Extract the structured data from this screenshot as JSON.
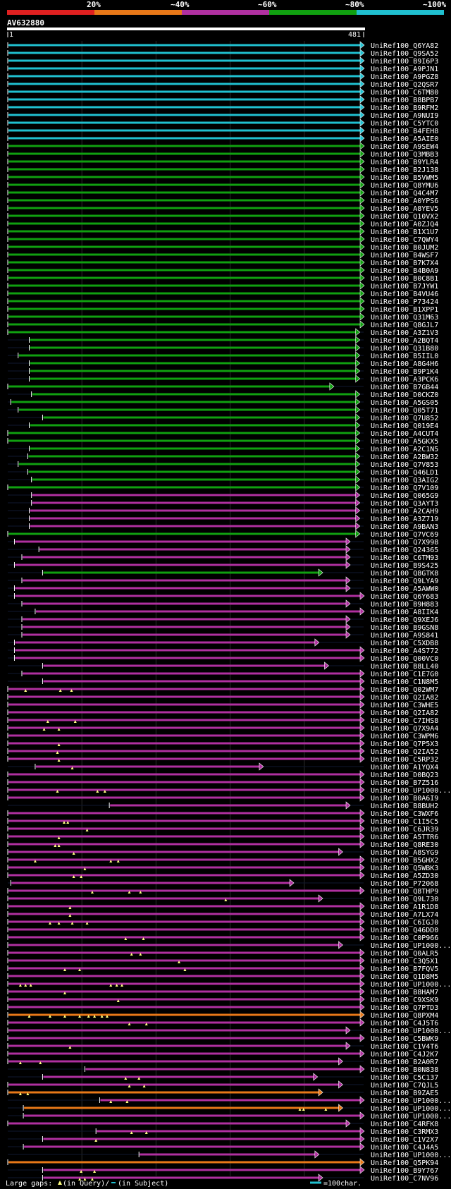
{
  "header": {
    "legend_labels": [
      "20%",
      "~40%",
      "~60%",
      "~80%",
      "~100%"
    ],
    "legend_colors": [
      "#e02020",
      "#e87818",
      "#b030a0",
      "#10a010",
      "#20c0d0"
    ],
    "query_name": "AV632880",
    "start_label": "1",
    "end_label": "481"
  },
  "colors": {
    "cyan": "#20c0d0",
    "green": "#10a010",
    "magenta": "#b030a0",
    "orange": "#e87818",
    "gap_marker": "#ffff80"
  },
  "footer": {
    "text_prefix": "Large gaps:",
    "text_query": "(in Query)/",
    "text_subject": "(in Subject)",
    "scale_text": "=100char."
  },
  "hits": [
    {
      "id": "UniRef100_Q6YA82",
      "c": "cyan",
      "s": 1,
      "e": 481
    },
    {
      "id": "UniRef100_Q9SA52",
      "c": "cyan",
      "s": 1,
      "e": 481
    },
    {
      "id": "UniRef100_B9I6P3",
      "c": "cyan",
      "s": 1,
      "e": 481
    },
    {
      "id": "UniRef100_A9PJN1",
      "c": "cyan",
      "s": 1,
      "e": 481
    },
    {
      "id": "UniRef100_A9PGZ8",
      "c": "cyan",
      "s": 1,
      "e": 481
    },
    {
      "id": "UniRef100_Q2QSR7",
      "c": "cyan",
      "s": 1,
      "e": 481
    },
    {
      "id": "UniRef100_C6TM80",
      "c": "cyan",
      "s": 1,
      "e": 481
    },
    {
      "id": "UniRef100_B8BPB7",
      "c": "cyan",
      "s": 1,
      "e": 481
    },
    {
      "id": "UniRef100_B9RFM2",
      "c": "cyan",
      "s": 1,
      "e": 481
    },
    {
      "id": "UniRef100_A9NUI9",
      "c": "cyan",
      "s": 1,
      "e": 481
    },
    {
      "id": "UniRef100_C5YTC0",
      "c": "cyan",
      "s": 1,
      "e": 481
    },
    {
      "id": "UniRef100_B4FEH8",
      "c": "cyan",
      "s": 1,
      "e": 481
    },
    {
      "id": "UniRef100_A5AIE0",
      "c": "cyan",
      "s": 1,
      "e": 481
    },
    {
      "id": "UniRef100_A9SEW4",
      "c": "green",
      "s": 1,
      "e": 481
    },
    {
      "id": "UniRef100_Q3MBB3",
      "c": "green",
      "s": 1,
      "e": 481
    },
    {
      "id": "UniRef100_B9YLR4",
      "c": "green",
      "s": 1,
      "e": 481
    },
    {
      "id": "UniRef100_B2J138",
      "c": "green",
      "s": 1,
      "e": 481
    },
    {
      "id": "UniRef100_B5VWM5",
      "c": "green",
      "s": 1,
      "e": 481
    },
    {
      "id": "UniRef100_Q8YMU6",
      "c": "green",
      "s": 1,
      "e": 481
    },
    {
      "id": "UniRef100_Q4C4M7",
      "c": "green",
      "s": 1,
      "e": 481
    },
    {
      "id": "UniRef100_A0YPS6",
      "c": "green",
      "s": 1,
      "e": 481
    },
    {
      "id": "UniRef100_A8YEV5",
      "c": "green",
      "s": 1,
      "e": 481
    },
    {
      "id": "UniRef100_Q10VX2",
      "c": "green",
      "s": 1,
      "e": 481
    },
    {
      "id": "UniRef100_A0ZJQ4",
      "c": "green",
      "s": 1,
      "e": 481
    },
    {
      "id": "UniRef100_B1X1U7",
      "c": "green",
      "s": 1,
      "e": 481
    },
    {
      "id": "UniRef100_C7QWY4",
      "c": "green",
      "s": 1,
      "e": 481
    },
    {
      "id": "UniRef100_B0JUM2",
      "c": "green",
      "s": 1,
      "e": 481
    },
    {
      "id": "UniRef100_B4WSF7",
      "c": "green",
      "s": 1,
      "e": 481
    },
    {
      "id": "UniRef100_B7K7X4",
      "c": "green",
      "s": 1,
      "e": 481
    },
    {
      "id": "UniRef100_B4B0A9",
      "c": "green",
      "s": 1,
      "e": 481
    },
    {
      "id": "UniRef100_B0C8B1",
      "c": "green",
      "s": 1,
      "e": 481
    },
    {
      "id": "UniRef100_B7JYW1",
      "c": "green",
      "s": 1,
      "e": 481
    },
    {
      "id": "UniRef100_B4VU46",
      "c": "green",
      "s": 1,
      "e": 481
    },
    {
      "id": "UniRef100_P73424",
      "c": "green",
      "s": 1,
      "e": 481
    },
    {
      "id": "UniRef100_B1XPP1",
      "c": "green",
      "s": 1,
      "e": 481
    },
    {
      "id": "UniRef100_Q31M63",
      "c": "green",
      "s": 1,
      "e": 481
    },
    {
      "id": "UniRef100_Q8GJL7",
      "c": "green",
      "s": 1,
      "e": 481
    },
    {
      "id": "UniRef100_A3Z1V3",
      "c": "green",
      "s": 1,
      "e": 475
    },
    {
      "id": "UniRef100_A2BQT4",
      "c": "green",
      "s": 30,
      "e": 475
    },
    {
      "id": "UniRef100_Q31B80",
      "c": "green",
      "s": 30,
      "e": 475
    },
    {
      "id": "UniRef100_B5IIL0",
      "c": "green",
      "s": 15,
      "e": 475
    },
    {
      "id": "UniRef100_A8G4H6",
      "c": "green",
      "s": 30,
      "e": 475
    },
    {
      "id": "UniRef100_B9P1K4",
      "c": "green",
      "s": 30,
      "e": 475
    },
    {
      "id": "UniRef100_A3PCK6",
      "c": "green",
      "s": 30,
      "e": 475
    },
    {
      "id": "UniRef100_B7GB44",
      "c": "green",
      "s": 1,
      "e": 440
    },
    {
      "id": "UniRef100_D0CKZ0",
      "c": "green",
      "s": 33,
      "e": 475
    },
    {
      "id": "UniRef100_A5GS05",
      "c": "green",
      "s": 5,
      "e": 475
    },
    {
      "id": "UniRef100_Q05T71",
      "c": "green",
      "s": 15,
      "e": 475
    },
    {
      "id": "UniRef100_Q7U852",
      "c": "green",
      "s": 48,
      "e": 475
    },
    {
      "id": "UniRef100_Q019E4",
      "c": "green",
      "s": 30,
      "e": 475
    },
    {
      "id": "UniRef100_A4CUT4",
      "c": "green",
      "s": 1,
      "e": 475
    },
    {
      "id": "UniRef100_A5GKX5",
      "c": "green",
      "s": 1,
      "e": 475
    },
    {
      "id": "UniRef100_A2C1N5",
      "c": "green",
      "s": 30,
      "e": 475
    },
    {
      "id": "UniRef100_A2BW32",
      "c": "green",
      "s": 28,
      "e": 475
    },
    {
      "id": "UniRef100_Q7V853",
      "c": "green",
      "s": 15,
      "e": 475
    },
    {
      "id": "UniRef100_Q46LD1",
      "c": "green",
      "s": 28,
      "e": 475
    },
    {
      "id": "UniRef100_Q3AIG2",
      "c": "green",
      "s": 33,
      "e": 475
    },
    {
      "id": "UniRef100_Q7V109",
      "c": "green",
      "s": 1,
      "e": 475
    },
    {
      "id": "UniRef100_Q065G9",
      "c": "magenta",
      "s": 33,
      "e": 475
    },
    {
      "id": "UniRef100_Q3AYT3",
      "c": "magenta",
      "s": 33,
      "e": 475
    },
    {
      "id": "UniRef100_A2CAH9",
      "c": "magenta",
      "s": 30,
      "e": 475
    },
    {
      "id": "UniRef100_A3Z719",
      "c": "magenta",
      "s": 30,
      "e": 475
    },
    {
      "id": "UniRef100_A9BAN3",
      "c": "magenta",
      "s": 30,
      "e": 475
    },
    {
      "id": "UniRef100_Q7VC69",
      "c": "green",
      "s": 1,
      "e": 475
    },
    {
      "id": "UniRef100_Q7X998",
      "c": "magenta",
      "s": 10,
      "e": 462
    },
    {
      "id": "UniRef100_Q24365",
      "c": "magenta",
      "s": 43,
      "e": 462
    },
    {
      "id": "UniRef100_C6TM93",
      "c": "magenta",
      "s": 20,
      "e": 462
    },
    {
      "id": "UniRef100_B9S425",
      "c": "magenta",
      "s": 10,
      "e": 462
    },
    {
      "id": "UniRef100_Q8GTK8",
      "c": "green",
      "s": 48,
      "e": 425
    },
    {
      "id": "UniRef100_Q9LYA9",
      "c": "magenta",
      "s": 20,
      "e": 462
    },
    {
      "id": "UniRef100_A5AWW0",
      "c": "magenta",
      "s": 10,
      "e": 462
    },
    {
      "id": "UniRef100_Q6Y683",
      "c": "magenta",
      "s": 10,
      "e": 481
    },
    {
      "id": "UniRef100_B9H883",
      "c": "magenta",
      "s": 20,
      "e": 462
    },
    {
      "id": "UniRef100_A8IIK4",
      "c": "magenta",
      "s": 38,
      "e": 481
    },
    {
      "id": "UniRef100_Q9XEJ6",
      "c": "magenta",
      "s": 20,
      "e": 462
    },
    {
      "id": "UniRef100_B9GSN8",
      "c": "magenta",
      "s": 20,
      "e": 462
    },
    {
      "id": "UniRef100_A9S841",
      "c": "magenta",
      "s": 20,
      "e": 462
    },
    {
      "id": "UniRef100_C5XDB8",
      "c": "magenta",
      "s": 10,
      "e": 420
    },
    {
      "id": "UniRef100_A4S772",
      "c": "magenta",
      "s": 10,
      "e": 481
    },
    {
      "id": "UniRef100_Q00VC0",
      "c": "magenta",
      "s": 10,
      "e": 481
    },
    {
      "id": "UniRef100_B8LL40",
      "c": "magenta",
      "s": 48,
      "e": 433
    },
    {
      "id": "UniRef100_C1E7G0",
      "c": "magenta",
      "s": 20,
      "e": 481
    },
    {
      "id": "UniRef100_C1N8M5",
      "c": "magenta",
      "s": 48,
      "e": 481
    },
    {
      "id": "UniRef100_Q02WM7",
      "c": "magenta",
      "s": 1,
      "e": 481,
      "gaps": [
        25,
        72,
        87
      ]
    },
    {
      "id": "UniRef100_Q2IA82",
      "c": "magenta",
      "s": 1,
      "e": 481,
      "gaps": []
    },
    {
      "id": "UniRef100_C3WHE5",
      "c": "magenta",
      "s": 1,
      "e": 481,
      "gaps": []
    },
    {
      "id": "UniRef100_Q2IA82",
      "c": "magenta",
      "s": 1,
      "e": 481,
      "gaps": []
    },
    {
      "id": "UniRef100_C7IHS8",
      "c": "magenta",
      "s": 1,
      "e": 481,
      "gaps": [
        55,
        92
      ]
    },
    {
      "id": "UniRef100_Q7X9A4",
      "c": "magenta",
      "s": 1,
      "e": 481,
      "gaps": [
        50,
        70
      ]
    },
    {
      "id": "UniRef100_C3WPM6",
      "c": "magenta",
      "s": 1,
      "e": 481,
      "gaps": []
    },
    {
      "id": "UniRef100_Q7P5X3",
      "c": "magenta",
      "s": 1,
      "e": 481,
      "gaps": [
        70
      ]
    },
    {
      "id": "UniRef100_Q2IA52",
      "c": "magenta",
      "s": 1,
      "e": 481,
      "gaps": [
        68
      ]
    },
    {
      "id": "UniRef100_C5RP32",
      "c": "magenta",
      "s": 1,
      "e": 481,
      "gaps": [
        70
      ]
    },
    {
      "id": "UniRef100_A1YQX4",
      "c": "magenta",
      "s": 38,
      "e": 345,
      "gaps": [
        88
      ]
    },
    {
      "id": "UniRef100_D0BQ23",
      "c": "magenta",
      "s": 1,
      "e": 481,
      "gaps": []
    },
    {
      "id": "UniRef100_B7Z516",
      "c": "magenta",
      "s": 1,
      "e": 481,
      "gaps": []
    },
    {
      "id": "UniRef100_UP1000...",
      "c": "magenta",
      "s": 1,
      "e": 481,
      "gaps": [
        68,
        122,
        132
      ]
    },
    {
      "id": "UniRef100_B0A6I9",
      "c": "magenta",
      "s": 1,
      "e": 481,
      "gaps": []
    },
    {
      "id": "UniRef100_B8BUH2",
      "c": "magenta",
      "s": 138,
      "e": 462,
      "gaps": []
    },
    {
      "id": "UniRef100_C3WXF6",
      "c": "magenta",
      "s": 1,
      "e": 481,
      "gaps": []
    },
    {
      "id": "UniRef100_C1I5C5",
      "c": "magenta",
      "s": 1,
      "e": 481,
      "gaps": [
        77,
        82
      ]
    },
    {
      "id": "UniRef100_C6JR39",
      "c": "magenta",
      "s": 1,
      "e": 481,
      "gaps": [
        108
      ]
    },
    {
      "id": "UniRef100_A5TTR6",
      "c": "magenta",
      "s": 1,
      "e": 481,
      "gaps": [
        70
      ]
    },
    {
      "id": "UniRef100_Q8RE30",
      "c": "magenta",
      "s": 1,
      "e": 481,
      "gaps": [
        65,
        70
      ]
    },
    {
      "id": "UniRef100_A8SYG9",
      "c": "magenta",
      "s": 1,
      "e": 452,
      "gaps": [
        90
      ]
    },
    {
      "id": "UniRef100_B5GHX2",
      "c": "magenta",
      "s": 1,
      "e": 481,
      "gaps": [
        38,
        140,
        150
      ]
    },
    {
      "id": "UniRef100_Q5WBK3",
      "c": "magenta",
      "s": 1,
      "e": 481,
      "gaps": [
        105
      ]
    },
    {
      "id": "UniRef100_A5ZD30",
      "c": "magenta",
      "s": 1,
      "e": 481,
      "gaps": [
        90,
        100
      ]
    },
    {
      "id": "UniRef100_P72068",
      "c": "magenta",
      "s": 5,
      "e": 386,
      "gaps": []
    },
    {
      "id": "UniRef100_Q8THP9",
      "c": "magenta",
      "s": 1,
      "e": 481,
      "gaps": [
        115,
        165,
        180
      ]
    },
    {
      "id": "UniRef100_Q9L730",
      "c": "magenta",
      "s": 1,
      "e": 425,
      "gaps": [
        295
      ]
    },
    {
      "id": "UniRef100_A1R1D8",
      "c": "magenta",
      "s": 1,
      "e": 481,
      "gaps": [
        85
      ]
    },
    {
      "id": "UniRef100_A7LX74",
      "c": "magenta",
      "s": 1,
      "e": 481,
      "gaps": [
        85
      ]
    },
    {
      "id": "UniRef100_C6IGJ0",
      "c": "magenta",
      "s": 1,
      "e": 481,
      "gaps": [
        58,
        70,
        88,
        108
      ]
    },
    {
      "id": "UniRef100_Q46DD0",
      "c": "magenta",
      "s": 1,
      "e": 481,
      "gaps": []
    },
    {
      "id": "UniRef100_C0P966",
      "c": "magenta",
      "s": 1,
      "e": 481,
      "gaps": [
        160,
        184
      ]
    },
    {
      "id": "UniRef100_UP1000...",
      "c": "magenta",
      "s": 1,
      "e": 452,
      "gaps": []
    },
    {
      "id": "UniRef100_Q0ALR5",
      "c": "magenta",
      "s": 1,
      "e": 481,
      "gaps": [
        168,
        180
      ]
    },
    {
      "id": "UniRef100_C3Q5X1",
      "c": "magenta",
      "s": 1,
      "e": 481,
      "gaps": [
        232
      ]
    },
    {
      "id": "UniRef100_B7FQV5",
      "c": "magenta",
      "s": 1,
      "e": 481,
      "gaps": [
        78,
        98,
        240
      ]
    },
    {
      "id": "UniRef100_Q1D8M5",
      "c": "magenta",
      "s": 1,
      "e": 481,
      "gaps": []
    },
    {
      "id": "UniRef100_UP1000...",
      "c": "magenta",
      "s": 1,
      "e": 481,
      "gaps": [
        18,
        25,
        32,
        140,
        148,
        155
      ]
    },
    {
      "id": "UniRef100_B8HAM7",
      "c": "magenta",
      "s": 1,
      "e": 481,
      "gaps": [
        78
      ]
    },
    {
      "id": "UniRef100_C9XSK9",
      "c": "magenta",
      "s": 1,
      "e": 481,
      "gaps": [
        150
      ]
    },
    {
      "id": "UniRef100_Q7PTD3",
      "c": "magenta",
      "s": 1,
      "e": 481,
      "gaps": []
    },
    {
      "id": "UniRef100_Q8PXM4",
      "c": "orange",
      "s": 1,
      "e": 481,
      "gaps": [
        30,
        58,
        78,
        98,
        110,
        118,
        128,
        135
      ]
    },
    {
      "id": "UniRef100_C4J5T6",
      "c": "magenta",
      "s": 1,
      "e": 481,
      "gaps": [
        165,
        188
      ]
    },
    {
      "id": "UniRef100_UP1000...",
      "c": "magenta",
      "s": 1,
      "e": 462,
      "gaps": []
    },
    {
      "id": "UniRef100_C5BWK9",
      "c": "magenta",
      "s": 1,
      "e": 481,
      "gaps": []
    },
    {
      "id": "UniRef100_C1V4T6",
      "c": "magenta",
      "s": 1,
      "e": 462,
      "gaps": [
        85
      ]
    },
    {
      "id": "UniRef100_C4J2K7",
      "c": "magenta",
      "s": 1,
      "e": 481,
      "gaps": []
    },
    {
      "id": "UniRef100_B2A0R7",
      "c": "magenta",
      "s": 1,
      "e": 452,
      "gaps": [
        18,
        45
      ]
    },
    {
      "id": "UniRef100_B0N838",
      "c": "magenta",
      "s": 105,
      "e": 481,
      "gaps": []
    },
    {
      "id": "UniRef100_C5C137",
      "c": "magenta",
      "s": 48,
      "e": 418,
      "gaps": [
        160,
        178
      ]
    },
    {
      "id": "UniRef100_C7QJL5",
      "c": "magenta",
      "s": 1,
      "e": 452,
      "gaps": [
        165,
        185
      ]
    },
    {
      "id": "UniRef100_B9ZAE5",
      "c": "orange",
      "s": 1,
      "e": 425,
      "gaps": [
        18,
        28
      ]
    },
    {
      "id": "UniRef100_UP1000...",
      "c": "magenta",
      "s": 125,
      "e": 481,
      "gaps": [
        140,
        162
      ]
    },
    {
      "id": "UniRef100_UP1000...",
      "c": "orange",
      "s": 22,
      "e": 452,
      "gaps": [
        395,
        400,
        430
      ]
    },
    {
      "id": "UniRef100_UP1000...",
      "c": "magenta",
      "s": 22,
      "e": 481,
      "gaps": []
    },
    {
      "id": "UniRef100_C4RFK8",
      "c": "magenta",
      "s": 1,
      "e": 462,
      "gaps": []
    },
    {
      "id": "UniRef100_C3RMX3",
      "c": "magenta",
      "s": 120,
      "e": 481,
      "gaps": [
        168,
        188
      ]
    },
    {
      "id": "UniRef100_C1V2X7",
      "c": "magenta",
      "s": 48,
      "e": 481,
      "gaps": [
        120
      ]
    },
    {
      "id": "UniRef100_C4J4A5",
      "c": "magenta",
      "s": 22,
      "e": 481,
      "gaps": []
    },
    {
      "id": "UniRef100_UP1000...",
      "c": "magenta",
      "s": 178,
      "e": 420,
      "gaps": []
    },
    {
      "id": "UniRef100_Q5PK94",
      "c": "orange",
      "s": 1,
      "e": 481,
      "gaps": []
    },
    {
      "id": "UniRef100_B9Y767",
      "c": "magenta",
      "s": 48,
      "e": 481,
      "gaps": [
        100,
        118
      ]
    },
    {
      "id": "UniRef100_C7NV96",
      "c": "magenta",
      "s": 48,
      "e": 425,
      "gaps": [
        98,
        105,
        115
      ]
    }
  ]
}
